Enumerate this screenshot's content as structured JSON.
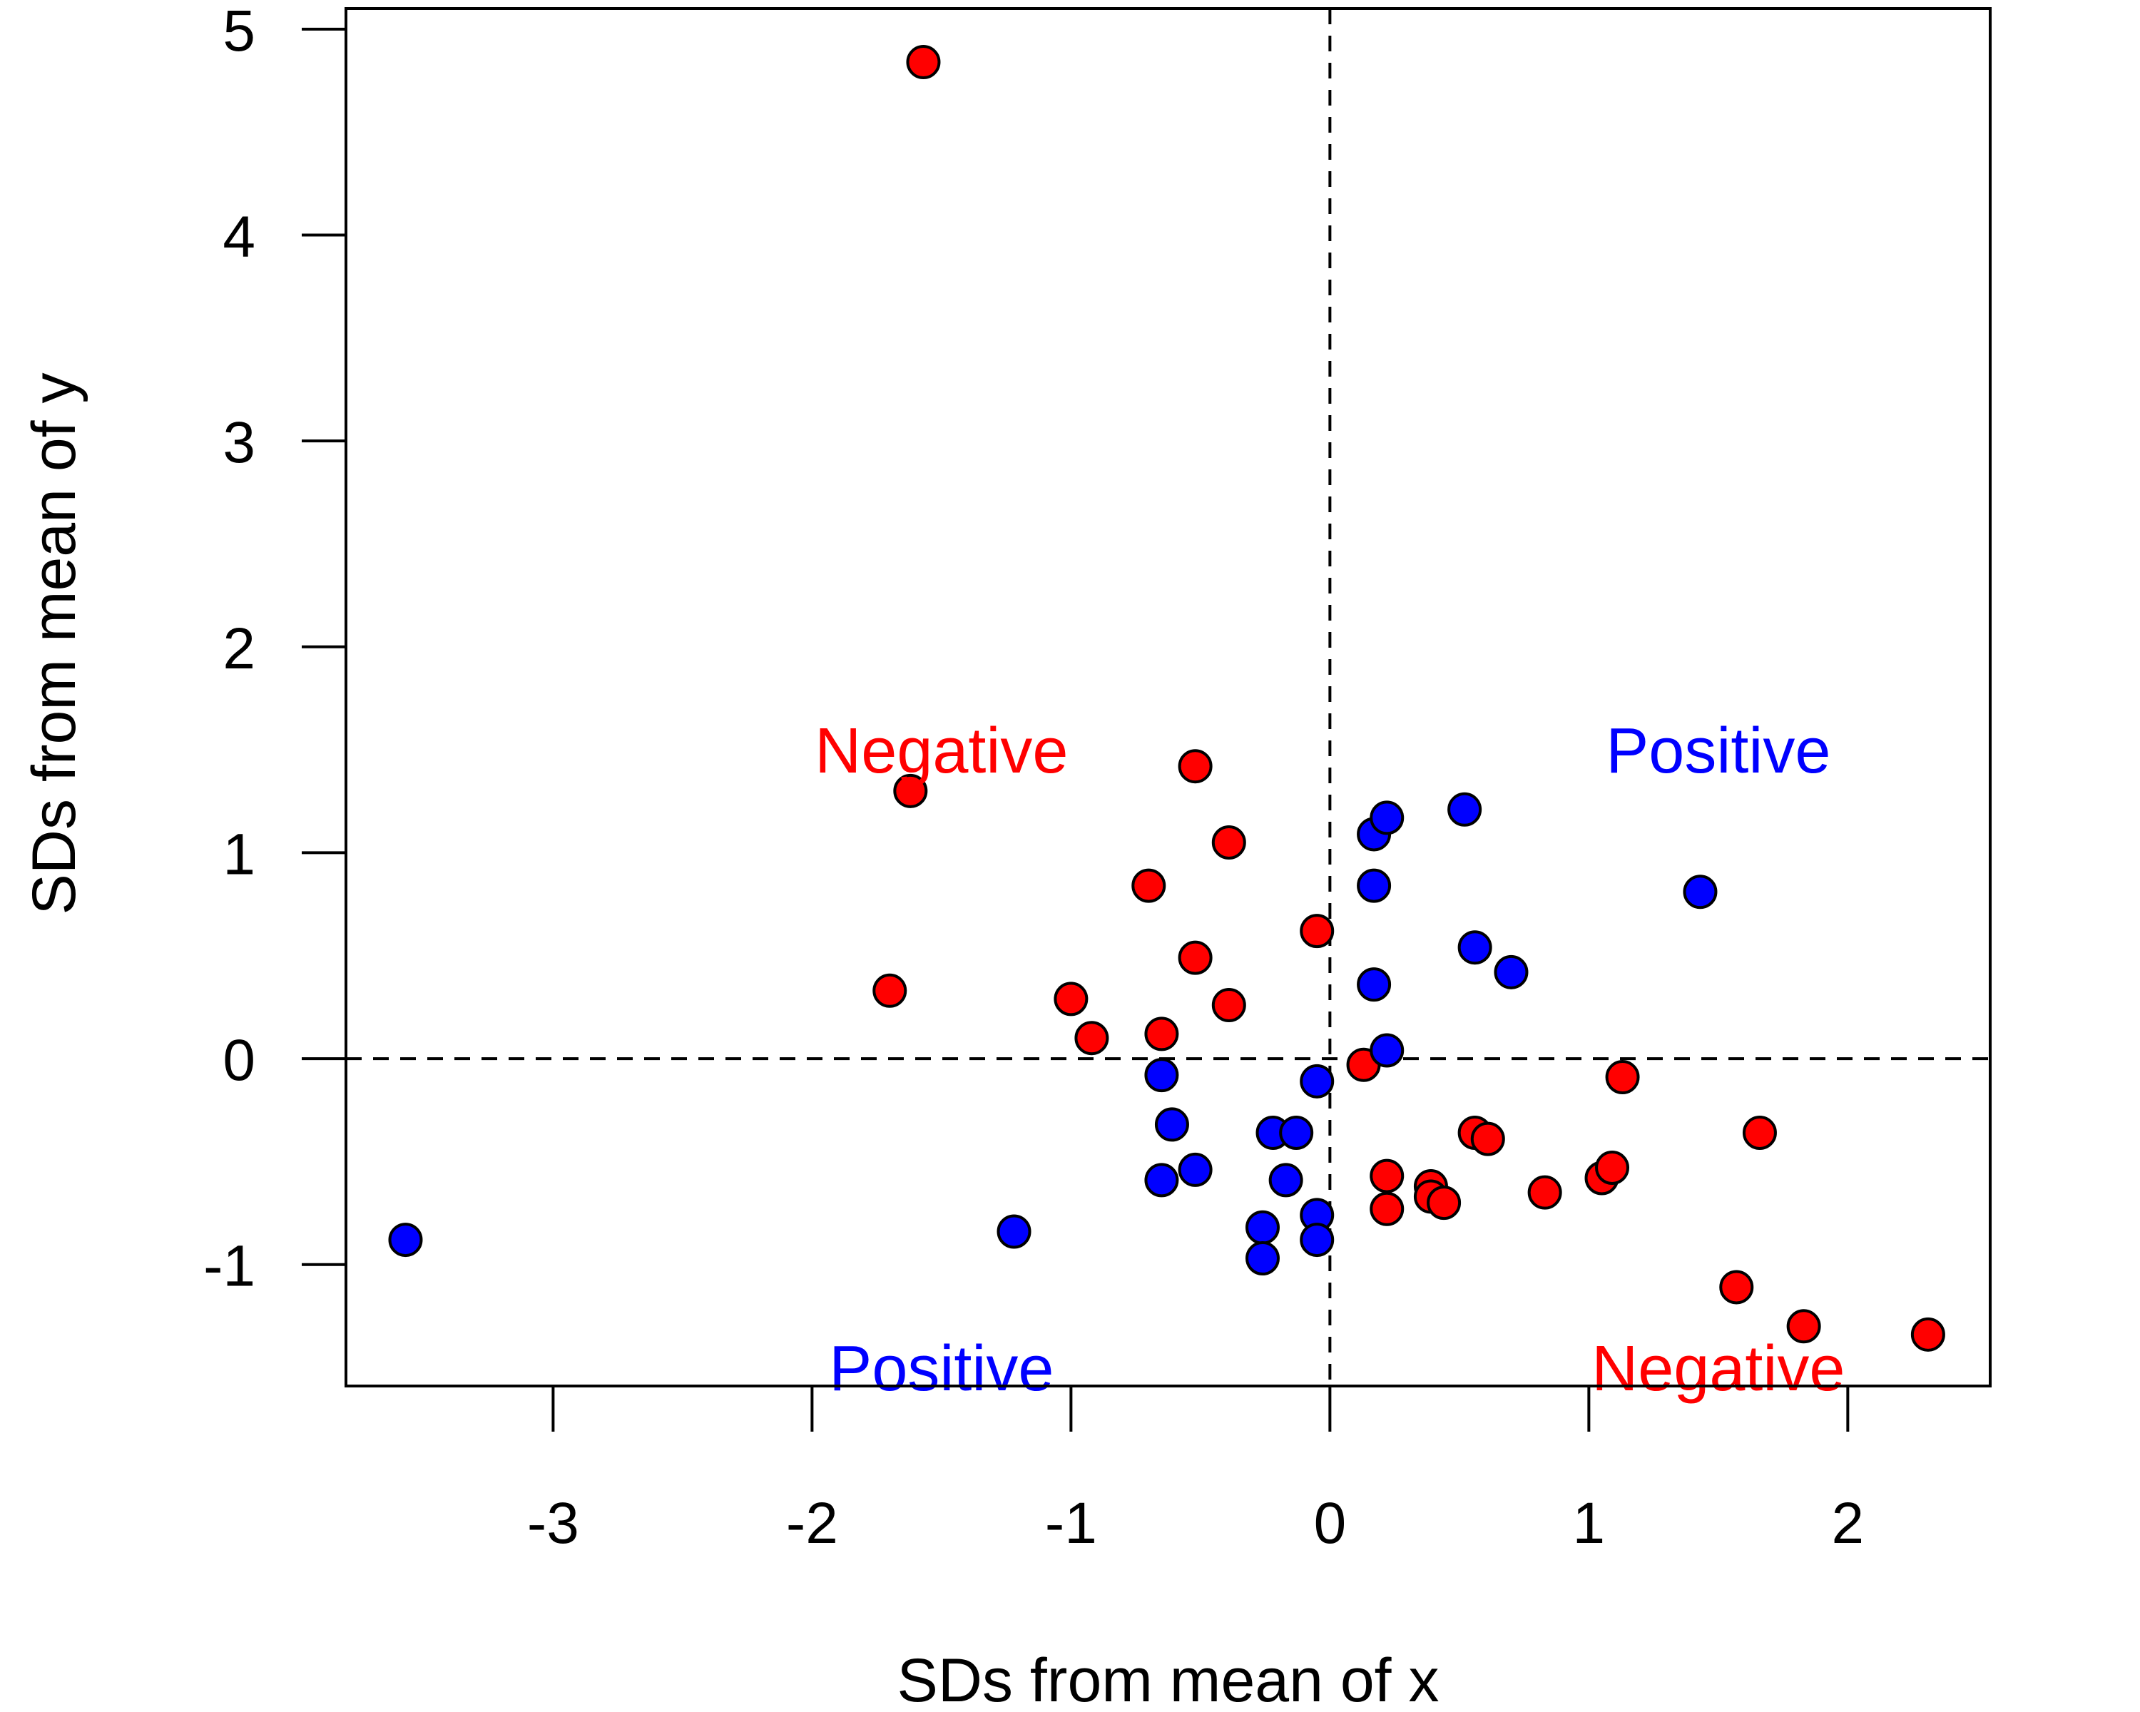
{
  "chart_data": {
    "type": "scatter",
    "title": "",
    "xlabel": "SDs from mean of x",
    "ylabel": "SDs from mean of y",
    "xlim": [
      -3.8,
      2.55
    ],
    "ylim": [
      -1.59,
      5.1
    ],
    "xticks": [
      -3,
      -2,
      -1,
      0,
      1,
      2
    ],
    "xtick_labels": [
      "-3",
      "-2",
      "-1",
      "0",
      "1",
      "2"
    ],
    "yticks": [
      -1,
      0,
      1,
      2,
      3,
      4,
      5
    ],
    "ytick_labels": [
      "-1",
      "0",
      "1",
      "2",
      "3",
      "4",
      "5"
    ],
    "reference_lines": [
      {
        "axis": "x",
        "value": 0,
        "style": "dashed"
      },
      {
        "axis": "y",
        "value": 0,
        "style": "dashed"
      }
    ],
    "grid": false,
    "colors": {
      "positive": "#0000ff",
      "negative": "#ff0000"
    },
    "annotations": [
      {
        "text": "Negative",
        "x": -1.5,
        "y": 1.5,
        "color": "#ff0000"
      },
      {
        "text": "Positive",
        "x": 1.5,
        "y": 1.5,
        "color": "#0000ff"
      },
      {
        "text": "Positive",
        "x": -1.5,
        "y": -1.5,
        "color": "#0000ff"
      },
      {
        "text": "Negative",
        "x": 1.5,
        "y": -1.5,
        "color": "#ff0000"
      }
    ],
    "points": [
      {
        "x": -1.57,
        "y": 4.84,
        "color": "#ff0000"
      },
      {
        "x": -1.62,
        "y": 1.3,
        "color": "#ff0000"
      },
      {
        "x": -1.7,
        "y": 0.33,
        "color": "#ff0000"
      },
      {
        "x": -0.52,
        "y": 1.42,
        "color": "#ff0000"
      },
      {
        "x": -0.39,
        "y": 1.05,
        "color": "#ff0000"
      },
      {
        "x": -0.7,
        "y": 0.84,
        "color": "#ff0000"
      },
      {
        "x": -0.52,
        "y": 0.49,
        "color": "#ff0000"
      },
      {
        "x": -1.0,
        "y": 0.29,
        "color": "#ff0000"
      },
      {
        "x": -0.92,
        "y": 0.1,
        "color": "#ff0000"
      },
      {
        "x": -0.65,
        "y": 0.12,
        "color": "#ff0000"
      },
      {
        "x": -0.39,
        "y": 0.26,
        "color": "#ff0000"
      },
      {
        "x": -0.05,
        "y": 0.62,
        "color": "#ff0000"
      },
      {
        "x": 0.13,
        "y": -0.03,
        "color": "#ff0000"
      },
      {
        "x": 1.13,
        "y": -0.09,
        "color": "#ff0000"
      },
      {
        "x": 0.56,
        "y": -0.36,
        "color": "#ff0000"
      },
      {
        "x": 0.61,
        "y": -0.39,
        "color": "#ff0000"
      },
      {
        "x": 1.66,
        "y": -0.36,
        "color": "#ff0000"
      },
      {
        "x": 0.22,
        "y": -0.57,
        "color": "#ff0000"
      },
      {
        "x": 0.22,
        "y": -0.73,
        "color": "#ff0000"
      },
      {
        "x": 0.39,
        "y": -0.62,
        "color": "#ff0000"
      },
      {
        "x": 0.39,
        "y": -0.67,
        "color": "#ff0000"
      },
      {
        "x": 0.44,
        "y": -0.7,
        "color": "#ff0000"
      },
      {
        "x": 0.83,
        "y": -0.65,
        "color": "#ff0000"
      },
      {
        "x": 1.05,
        "y": -0.58,
        "color": "#ff0000"
      },
      {
        "x": 1.09,
        "y": -0.53,
        "color": "#ff0000"
      },
      {
        "x": 1.57,
        "y": -1.11,
        "color": "#ff0000"
      },
      {
        "x": 1.83,
        "y": -1.3,
        "color": "#ff0000"
      },
      {
        "x": 2.31,
        "y": -1.34,
        "color": "#ff0000"
      },
      {
        "x": -3.57,
        "y": -0.88,
        "color": "#0000ff"
      },
      {
        "x": -1.22,
        "y": -0.84,
        "color": "#0000ff"
      },
      {
        "x": -0.65,
        "y": -0.08,
        "color": "#0000ff"
      },
      {
        "x": -0.61,
        "y": -0.32,
        "color": "#0000ff"
      },
      {
        "x": -0.65,
        "y": -0.59,
        "color": "#0000ff"
      },
      {
        "x": -0.52,
        "y": -0.54,
        "color": "#0000ff"
      },
      {
        "x": -0.22,
        "y": -0.36,
        "color": "#0000ff"
      },
      {
        "x": -0.13,
        "y": -0.36,
        "color": "#0000ff"
      },
      {
        "x": -0.17,
        "y": -0.59,
        "color": "#0000ff"
      },
      {
        "x": -0.26,
        "y": -0.82,
        "color": "#0000ff"
      },
      {
        "x": -0.26,
        "y": -0.97,
        "color": "#0000ff"
      },
      {
        "x": -0.05,
        "y": -0.76,
        "color": "#0000ff"
      },
      {
        "x": -0.05,
        "y": -0.88,
        "color": "#0000ff"
      },
      {
        "x": -0.05,
        "y": -0.11,
        "color": "#0000ff"
      },
      {
        "x": 0.22,
        "y": 0.04,
        "color": "#0000ff"
      },
      {
        "x": 0.17,
        "y": 0.36,
        "color": "#0000ff"
      },
      {
        "x": 0.17,
        "y": 0.84,
        "color": "#0000ff"
      },
      {
        "x": 0.17,
        "y": 1.09,
        "color": "#0000ff"
      },
      {
        "x": 0.22,
        "y": 1.17,
        "color": "#0000ff"
      },
      {
        "x": 0.52,
        "y": 1.21,
        "color": "#0000ff"
      },
      {
        "x": 0.56,
        "y": 0.54,
        "color": "#0000ff"
      },
      {
        "x": 0.7,
        "y": 0.42,
        "color": "#0000ff"
      },
      {
        "x": 1.43,
        "y": 0.81,
        "color": "#0000ff"
      }
    ]
  }
}
